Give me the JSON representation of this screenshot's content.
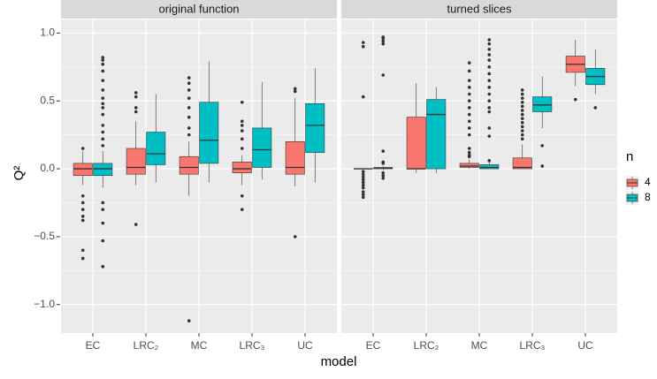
{
  "chart_data": {
    "type": "box",
    "xlabel": "model",
    "ylabel": "Q²",
    "legend_title": "n",
    "legend": "right",
    "grid": true,
    "ylim": [
      -1.21,
      1.1
    ],
    "yticks": [
      {
        "value": -1,
        "label": "−1.0"
      },
      {
        "value": -0.5,
        "label": "−0.5"
      },
      {
        "value": 0,
        "label": "0.0"
      },
      {
        "value": 0.5,
        "label": "0.5"
      },
      {
        "value": 1,
        "label": "1.0"
      }
    ],
    "minor_yticks": [
      -0.75,
      -0.25,
      0.25,
      0.75
    ],
    "series": [
      {
        "name": "4",
        "color": "#F8766D"
      },
      {
        "name": "8",
        "color": "#00BFC4"
      }
    ],
    "facets": [
      {
        "title": "original function",
        "categories": [
          "EC",
          "LRC₂",
          "MC",
          "LRC₃",
          "UC"
        ],
        "boxes": [
          {
            "lower": [
              -0.12,
              -0.12,
              -0.2,
              -0.12,
              -0.13
            ],
            "q1": [
              -0.05,
              -0.04,
              -0.04,
              -0.03,
              -0.04
            ],
            "median": [
              0.0,
              0.01,
              0.01,
              0.0,
              0.01
            ],
            "q3": [
              0.04,
              0.15,
              0.09,
              0.05,
              0.2
            ],
            "upper": [
              0.13,
              0.35,
              0.2,
              0.1,
              0.52
            ],
            "outliers": [
              [
                0.15,
                -0.2,
                -0.25,
                -0.3,
                -0.35,
                -0.38,
                -0.6,
                -0.66
              ],
              [
                0.56,
                0.53,
                0.45,
                0.42,
                -0.41
              ],
              [
                0.67,
                0.63,
                0.58,
                0.52,
                0.45,
                0.38,
                0.3,
                0.25,
                -1.12
              ],
              [
                0.49,
                0.35,
                0.32,
                0.28,
                0.22,
                0.15,
                -0.2,
                -0.3
              ],
              [
                0.59,
                0.57,
                -0.5
              ]
            ]
          },
          {
            "lower": [
              -0.14,
              -0.1,
              -0.1,
              -0.08,
              -0.1
            ],
            "q1": [
              -0.05,
              0.03,
              0.04,
              0.01,
              0.12
            ],
            "median": [
              0.0,
              0.11,
              0.21,
              0.14,
              0.32
            ],
            "q3": [
              0.04,
              0.27,
              0.49,
              0.3,
              0.48
            ],
            "upper": [
              0.13,
              0.55,
              0.79,
              0.64,
              0.74
            ],
            "outliers": [
              [
                0.82,
                0.8,
                0.77,
                0.72,
                0.65,
                0.58,
                0.52,
                0.48,
                0.45,
                0.4,
                0.32,
                0.27,
                0.22,
                0.17,
                -0.25,
                -0.3,
                -0.4,
                -0.53,
                -0.72
              ],
              [],
              [],
              [],
              []
            ]
          }
        ]
      },
      {
        "title": "turned slices",
        "categories": [
          "EC",
          "LRC₂",
          "MC",
          "LRC₃",
          "UC"
        ],
        "boxes": [
          {
            "lower": [
              0.0,
              -0.03,
              0.0,
              0.0,
              0.61
            ],
            "q1": [
              0.0,
              0.0,
              0.01,
              0.0,
              0.71
            ],
            "median": [
              0.0,
              0.0,
              0.02,
              0.01,
              0.77
            ],
            "q3": [
              0.0,
              0.38,
              0.04,
              0.08,
              0.83
            ],
            "upper": [
              0.0,
              0.63,
              0.07,
              0.18,
              0.95
            ],
            "outliers": [
              [
                0.93,
                0.9,
                0.53,
                -0.02,
                -0.04,
                -0.06,
                -0.08,
                -0.1,
                -0.12,
                -0.14,
                -0.17,
                -0.19,
                -0.21
              ],
              [],
              [
                0.78,
                0.72,
                0.65,
                0.6,
                0.55,
                0.5,
                0.45,
                0.4,
                0.35,
                0.3,
                0.25,
                0.15,
                0.12,
                0.1,
                0.09
              ],
              [
                0.58,
                0.55,
                0.52,
                0.49,
                0.46,
                0.43,
                0.4,
                0.37,
                0.34,
                0.31,
                0.28,
                0.25,
                0.22
              ],
              [
                0.51
              ]
            ]
          },
          {
            "lower": [
              -0.01,
              -0.03,
              0.0,
              0.3,
              0.55
            ],
            "q1": [
              0.0,
              0.0,
              0.0,
              0.42,
              0.62
            ],
            "median": [
              0.005,
              0.4,
              0.01,
              0.47,
              0.68
            ],
            "q3": [
              0.01,
              0.51,
              0.03,
              0.53,
              0.74
            ],
            "upper": [
              0.02,
              0.6,
              0.05,
              0.68,
              0.88
            ],
            "outliers": [
              [
                0.97,
                0.96,
                0.94,
                0.92,
                0.69,
                0.13,
                0.05,
                0.04,
                -0.03,
                -0.05,
                -0.07
              ],
              [],
              [
                0.95,
                0.92,
                0.88,
                0.84,
                0.8,
                0.75,
                0.7,
                0.65,
                0.6,
                0.55,
                0.5,
                0.45,
                0.42,
                0.3,
                0.24,
                0.06
              ],
              [
                0.17,
                0.02
              ],
              [
                0.45
              ]
            ]
          }
        ]
      }
    ]
  }
}
